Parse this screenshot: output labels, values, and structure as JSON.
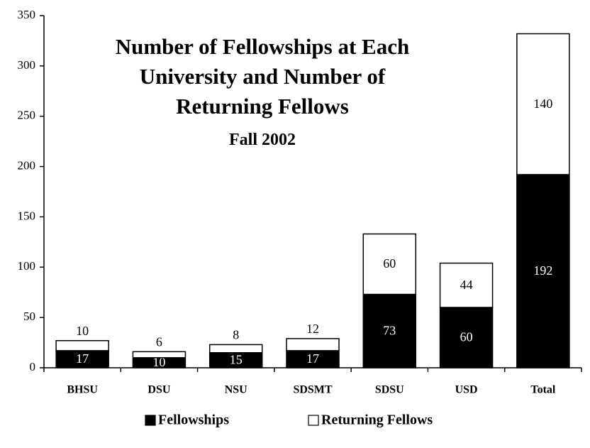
{
  "chart_data": {
    "type": "stacked_bar",
    "title": "Number of Fellowships at Each University and Number of Returning Fellows",
    "subtitle": "Fall 2002",
    "categories": [
      "BHSU",
      "DSU",
      "NSU",
      "SDSMT",
      "SDSU",
      "USD",
      "Total"
    ],
    "series": [
      {
        "name": "Fellowships",
        "color": "#000000",
        "values": [
          17,
          10,
          15,
          17,
          73,
          60,
          192
        ]
      },
      {
        "name": "Returning Fellows",
        "color": "#ffffff",
        "values": [
          10,
          6,
          8,
          12,
          60,
          44,
          140
        ]
      }
    ],
    "ylim": [
      0,
      350
    ],
    "yticks": [
      0,
      50,
      100,
      150,
      200,
      250,
      300,
      350
    ],
    "legend": "bottom"
  }
}
